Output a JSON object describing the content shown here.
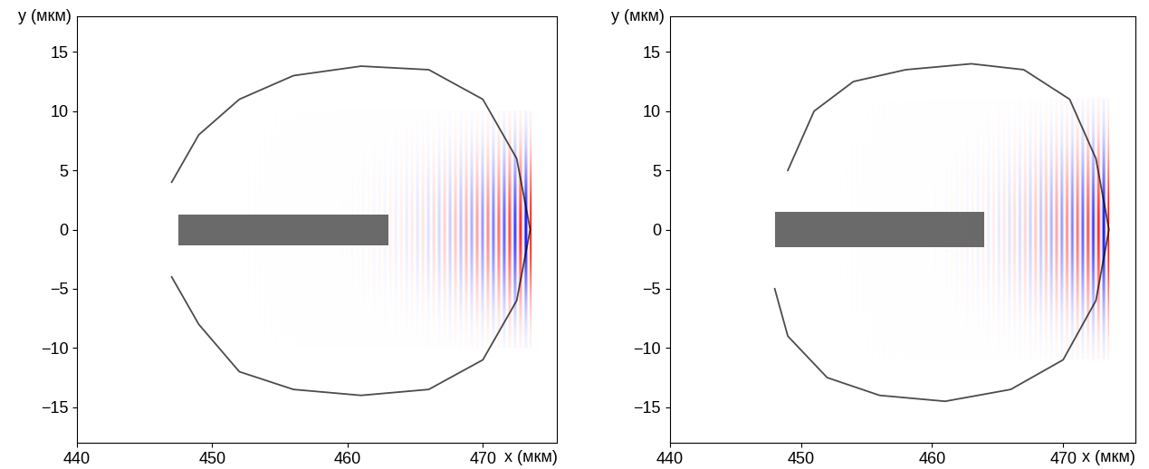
{
  "chart_data": [
    {
      "type": "simulation",
      "xlabel": "x (мкм)",
      "ylabel": "y (мкм)",
      "xlim": [
        440,
        475.5
      ],
      "ylim": [
        -18,
        18
      ],
      "xticks": [
        440,
        450,
        460,
        470
      ],
      "yticks": [
        {
          "value": -15,
          "label": "−15"
        },
        {
          "value": -10,
          "label": "−10"
        },
        {
          "value": -5,
          "label": "−5"
        },
        0,
        5,
        10,
        15
      ],
      "shell": {
        "x": [
          447,
          449,
          452,
          456,
          461,
          466,
          470,
          472.5,
          473.5,
          472.5,
          470,
          466,
          461,
          456,
          452,
          449,
          447
        ],
        "y": [
          4,
          8,
          11,
          13,
          13.8,
          13.5,
          11,
          6,
          0,
          -6,
          -11,
          -13.5,
          -14,
          -13.5,
          -12,
          -8,
          -4
        ]
      },
      "bunch": {
        "x": [
          447.5,
          463
        ],
        "y": [
          -1.3,
          1.3
        ]
      },
      "laser": {
        "x": [
          448,
          473.5
        ],
        "y": [
          -10,
          10
        ],
        "wavelength": 0.8
      }
    },
    {
      "type": "simulation",
      "xlabel": "x (мкм)",
      "ylabel": "y (мкм)",
      "xlim": [
        440,
        475.5
      ],
      "ylim": [
        -18,
        18
      ],
      "xticks": [
        440,
        450,
        460,
        470
      ],
      "yticks": [
        {
          "value": -15,
          "label": "−15"
        },
        {
          "value": -10,
          "label": "−10"
        },
        {
          "value": -5,
          "label": "−5"
        },
        0,
        5,
        10,
        15
      ],
      "shell": {
        "x": [
          449,
          451,
          454,
          458,
          463,
          467,
          470.5,
          472.5,
          473.5,
          472.5,
          470,
          466,
          461,
          456,
          452,
          449,
          448
        ],
        "y": [
          5,
          10,
          12.5,
          13.5,
          14,
          13.5,
          11,
          6,
          0,
          -6,
          -11,
          -13.5,
          -14.5,
          -14,
          -12.5,
          -9,
          -5
        ]
      },
      "bunch": {
        "x": [
          448,
          464
        ],
        "y": [
          -1.5,
          1.5
        ]
      },
      "laser": {
        "x": [
          449,
          473.5
        ],
        "y": [
          -11,
          11
        ],
        "wavelength": 0.8
      }
    }
  ]
}
